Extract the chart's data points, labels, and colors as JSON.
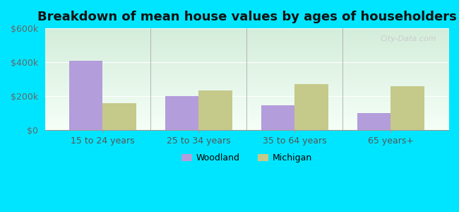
{
  "title": "Breakdown of mean house values by ages of householders",
  "categories": [
    "15 to 24 years",
    "25 to 34 years",
    "35 to 64 years",
    "65 years+"
  ],
  "woodland_values": [
    410000,
    200000,
    145000,
    100000
  ],
  "michigan_values": [
    160000,
    235000,
    270000,
    260000
  ],
  "woodland_color": "#b39ddb",
  "michigan_color": "#c5c98a",
  "ylim": [
    0,
    600000
  ],
  "yticks": [
    0,
    200000,
    400000,
    600000
  ],
  "ytick_labels": [
    "$0",
    "$200k",
    "$400k",
    "$600k"
  ],
  "outer_bg": "#00e5ff",
  "plot_bg_top": "#d4edda",
  "plot_bg_bottom": "#f5fff8",
  "bar_width": 0.35,
  "legend_woodland": "Woodland",
  "legend_michigan": "Michigan",
  "title_fontsize": 13,
  "watermark": "City-Data.com"
}
